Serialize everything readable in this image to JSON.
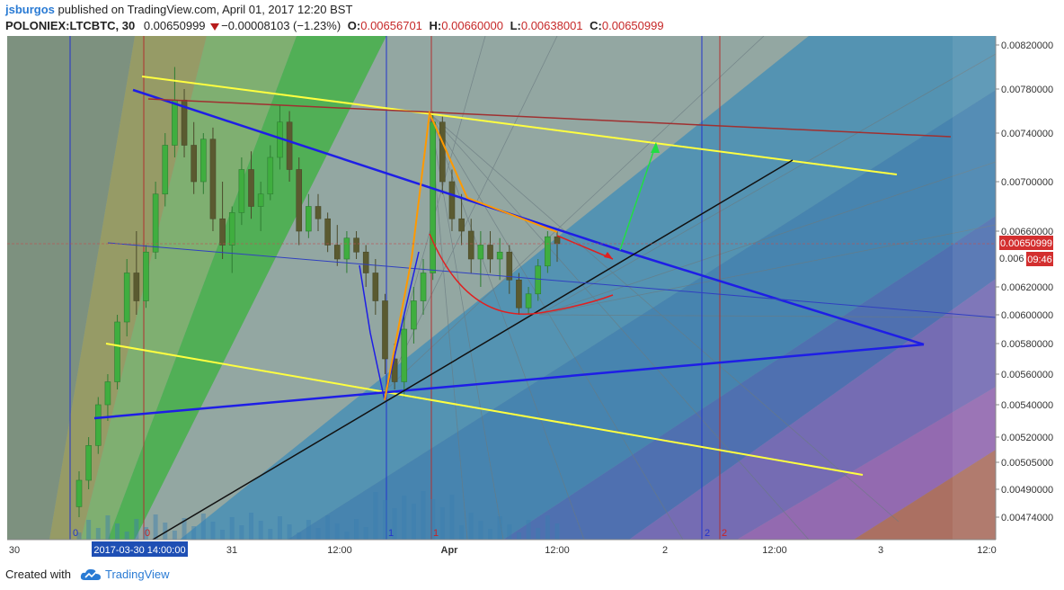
{
  "header": {
    "author": "jsburgos",
    "published_text": "published on TradingView.com, April 01, 2017 12:20 BST",
    "symbol": "POLONIEX:LTCBTC, 30",
    "last_price": "0.00650999",
    "change": "−0.00008103 (−1.23%)",
    "open_label": "O:",
    "open": "0.00656701",
    "high_label": "H:",
    "high": "0.00660000",
    "low_label": "L:",
    "low": "0.00638001",
    "close_label": "C:",
    "close": "0.00650999"
  },
  "chart_data": {
    "type": "candlestick",
    "symbol": "POLONIEX:LTCBTC",
    "interval": "30",
    "x_tick_labels": [
      "30",
      "31",
      "12:00",
      "Apr",
      "12:00",
      "2",
      "12:00",
      "3",
      "12:0"
    ],
    "x_cursor_label": "2017-03-30 14:00:00",
    "y_tick_labels": [
      "0.00820000",
      "0.00780000",
      "0.00740000",
      "0.00700000",
      "0.00660000",
      "0.00620000",
      "0.00600000",
      "0.00580000",
      "0.00560000",
      "0.00540000",
      "0.00520000",
      "0.00505000",
      "0.00490000",
      "0.00474000"
    ],
    "y_tick_values": [
      0.0082,
      0.0078,
      0.0074,
      0.007,
      0.0066,
      0.0062,
      0.006,
      0.0058,
      0.0056,
      0.0054,
      0.0052,
      0.00505,
      0.0049,
      0.00474
    ],
    "price_label": "0.00650999",
    "countdown_label": "09:46",
    "partial_label": "0.006",
    "cycle_labels": [
      "0",
      "0",
      "1",
      "1",
      "2",
      "2"
    ],
    "candles": [
      [
        0.0048,
        0.005,
        0.00474,
        0.00495
      ],
      [
        0.00495,
        0.0052,
        0.0049,
        0.00515
      ],
      [
        0.00515,
        0.00545,
        0.0051,
        0.0054
      ],
      [
        0.0054,
        0.0056,
        0.0053,
        0.00555
      ],
      [
        0.00555,
        0.006,
        0.0055,
        0.00595
      ],
      [
        0.00595,
        0.0064,
        0.00585,
        0.0063
      ],
      [
        0.0063,
        0.0066,
        0.006,
        0.0061
      ],
      [
        0.0061,
        0.0065,
        0.00605,
        0.00645
      ],
      [
        0.00645,
        0.007,
        0.0064,
        0.0069
      ],
      [
        0.0069,
        0.0074,
        0.0068,
        0.0073
      ],
      [
        0.0073,
        0.008,
        0.0072,
        0.0077
      ],
      [
        0.0077,
        0.0078,
        0.0072,
        0.0073
      ],
      [
        0.0073,
        0.0075,
        0.0069,
        0.007
      ],
      [
        0.007,
        0.0074,
        0.0069,
        0.00735
      ],
      [
        0.00735,
        0.00745,
        0.0066,
        0.0067
      ],
      [
        0.0067,
        0.007,
        0.0064,
        0.0065
      ],
      [
        0.0065,
        0.0068,
        0.0063,
        0.00675
      ],
      [
        0.00675,
        0.0072,
        0.00665,
        0.0071
      ],
      [
        0.0071,
        0.00725,
        0.0067,
        0.0068
      ],
      [
        0.0068,
        0.007,
        0.0066,
        0.0069
      ],
      [
        0.0069,
        0.0073,
        0.00685,
        0.0072
      ],
      [
        0.0072,
        0.00765,
        0.0071,
        0.0075
      ],
      [
        0.0075,
        0.0076,
        0.007,
        0.0071
      ],
      [
        0.0071,
        0.0072,
        0.0065,
        0.0066
      ],
      [
        0.0066,
        0.0069,
        0.00655,
        0.0068
      ],
      [
        0.0068,
        0.0069,
        0.0066,
        0.0067
      ],
      [
        0.0067,
        0.00675,
        0.00645,
        0.0065
      ],
      [
        0.0065,
        0.00665,
        0.00635,
        0.0064
      ],
      [
        0.0064,
        0.0066,
        0.0063,
        0.00655
      ],
      [
        0.00655,
        0.0066,
        0.0064,
        0.00645
      ],
      [
        0.00645,
        0.0065,
        0.0062,
        0.0063
      ],
      [
        0.0063,
        0.0064,
        0.006,
        0.0061
      ],
      [
        0.0061,
        0.00615,
        0.0056,
        0.0057
      ],
      [
        0.0057,
        0.0058,
        0.0055,
        0.00555
      ],
      [
        0.00555,
        0.006,
        0.00545,
        0.0059
      ],
      [
        0.0059,
        0.0062,
        0.0058,
        0.0061
      ],
      [
        0.0061,
        0.0064,
        0.006,
        0.0063
      ],
      [
        0.0063,
        0.0076,
        0.00625,
        0.0075
      ],
      [
        0.0075,
        0.00755,
        0.0069,
        0.007
      ],
      [
        0.007,
        0.0071,
        0.0066,
        0.0067
      ],
      [
        0.0067,
        0.0069,
        0.0065,
        0.0066
      ],
      [
        0.0066,
        0.0067,
        0.0063,
        0.0064
      ],
      [
        0.0064,
        0.0066,
        0.0062,
        0.0065
      ],
      [
        0.0065,
        0.0066,
        0.0063,
        0.0064
      ],
      [
        0.0064,
        0.00655,
        0.00625,
        0.00645
      ],
      [
        0.00645,
        0.0065,
        0.00615,
        0.00625
      ],
      [
        0.00625,
        0.0063,
        0.006,
        0.00605
      ],
      [
        0.00605,
        0.0062,
        0.006,
        0.00615
      ],
      [
        0.00615,
        0.0064,
        0.0061,
        0.00635
      ],
      [
        0.00635,
        0.0066,
        0.0063,
        0.00656
      ],
      [
        0.00656,
        0.0066,
        0.00638,
        0.00651
      ]
    ],
    "annotation_lines": [
      {
        "name": "yellow-channel-upper",
        "color": "#ffff40"
      },
      {
        "name": "yellow-channel-lower",
        "color": "#ffff40"
      },
      {
        "name": "blue-trendline-descending",
        "color": "#1e1ee6"
      },
      {
        "name": "blue-trendline-ascending",
        "color": "#1e1ee6"
      },
      {
        "name": "black-support-line",
        "color": "#111111"
      },
      {
        "name": "red-resistance-line",
        "color": "#b03030"
      },
      {
        "name": "green-projection-arrow",
        "color": "#22dd44"
      },
      {
        "name": "red-projection-arrow",
        "color": "#e02020"
      },
      {
        "name": "orange-swing-lines",
        "color": "#ff9900"
      }
    ]
  },
  "colors": {
    "bull_candle": "#2e7d32",
    "bear_candle": "#4a4a2a",
    "price_tag": "#d32f2f",
    "cursor_tag": "#1e4fb4",
    "link": "#2a7bd4"
  },
  "footer": {
    "created_with": "Created with",
    "brand": "TradingView"
  }
}
